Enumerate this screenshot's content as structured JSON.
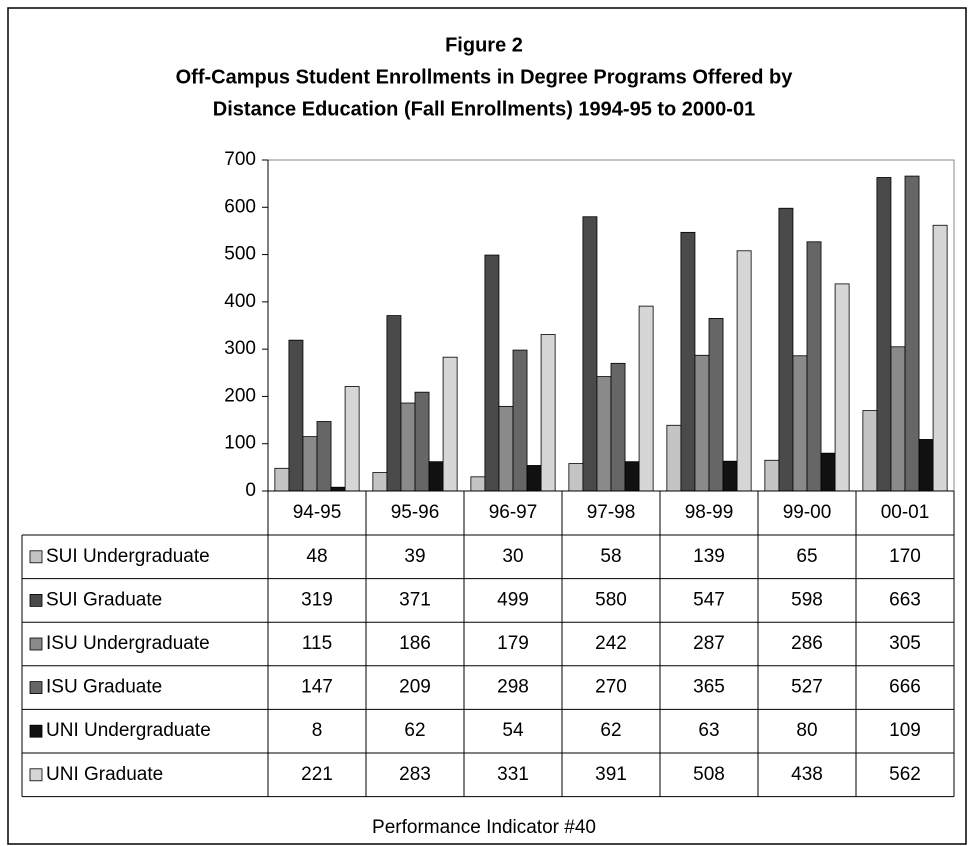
{
  "chart_data": {
    "type": "bar",
    "title": "Figure 2",
    "subtitle": [
      "Off-Campus Student Enrollments in Degree Programs Offered by",
      "Distance Education (Fall Enrollments) 1994-95 to 2000-01"
    ],
    "annotation": "Performance Indicator #40",
    "categories": [
      "94-95",
      "95-96",
      "96-97",
      "97-98",
      "98-99",
      "99-00",
      "00-01"
    ],
    "series": [
      {
        "name": "SUI Undergraduate",
        "color": "#c4c4c4",
        "values": [
          48,
          39,
          30,
          58,
          139,
          65,
          170
        ]
      },
      {
        "name": "SUI Graduate",
        "color": "#4a4a4a",
        "values": [
          319,
          371,
          499,
          580,
          547,
          598,
          663
        ]
      },
      {
        "name": "ISU Undergraduate",
        "color": "#8a8a8a",
        "values": [
          115,
          186,
          179,
          242,
          287,
          286,
          305
        ]
      },
      {
        "name": "ISU Graduate",
        "color": "#666666",
        "values": [
          147,
          209,
          298,
          270,
          365,
          527,
          666
        ]
      },
      {
        "name": "UNI Undergraduate",
        "color": "#111111",
        "values": [
          8,
          62,
          54,
          62,
          63,
          80,
          109
        ]
      },
      {
        "name": "UNI Graduate",
        "color": "#d6d6d6",
        "values": [
          221,
          283,
          331,
          391,
          508,
          438,
          562
        ]
      }
    ],
    "ylim": [
      0,
      700
    ],
    "yticks": [
      0,
      100,
      200,
      300,
      400,
      500,
      600,
      700
    ]
  }
}
